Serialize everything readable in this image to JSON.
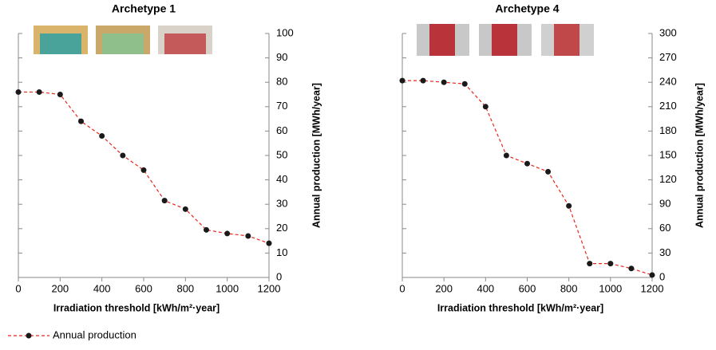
{
  "chart_data": [
    {
      "type": "line",
      "title": "Archetype 1",
      "x_label": "Irradiation threshold [kWh/m²·year]",
      "y_label": "Annual production [MWh/year]",
      "x": [
        0,
        100,
        200,
        300,
        400,
        500,
        600,
        700,
        800,
        900,
        1000,
        1100,
        1200
      ],
      "series": [
        {
          "name": "Annual production",
          "color": "#e8261c",
          "values": [
            76,
            76,
            75,
            64,
            58,
            50,
            44,
            31.5,
            28,
            19.5,
            18,
            17,
            14
          ]
        }
      ],
      "xlim": [
        0,
        1200
      ],
      "xticks": [
        0,
        200,
        400,
        600,
        800,
        1000,
        1200
      ],
      "ylim": [
        0,
        100
      ],
      "yticks": [
        0,
        10,
        20,
        30,
        40,
        50,
        60,
        70,
        80,
        90,
        100
      ]
    },
    {
      "type": "line",
      "title": "Archetype 4",
      "x_label": "Irradiation threshold [kWh/m²·year]",
      "y_label": "Annual production [MWh/year]",
      "x": [
        0,
        100,
        200,
        300,
        400,
        500,
        600,
        700,
        800,
        900,
        1000,
        1100,
        1200
      ],
      "series": [
        {
          "color": "#e8261c",
          "values": [
            242,
            242,
            240,
            238,
            210,
            150,
            140,
            130,
            88,
            17,
            17,
            11,
            3
          ]
        }
      ],
      "xlim": [
        0,
        1200
      ],
      "xticks": [
        0,
        200,
        400,
        600,
        800,
        1000,
        1200
      ],
      "ylim": [
        0,
        300
      ],
      "yticks": [
        0,
        30,
        60,
        90,
        120,
        150,
        180,
        210,
        240,
        270,
        300
      ]
    }
  ]
}
